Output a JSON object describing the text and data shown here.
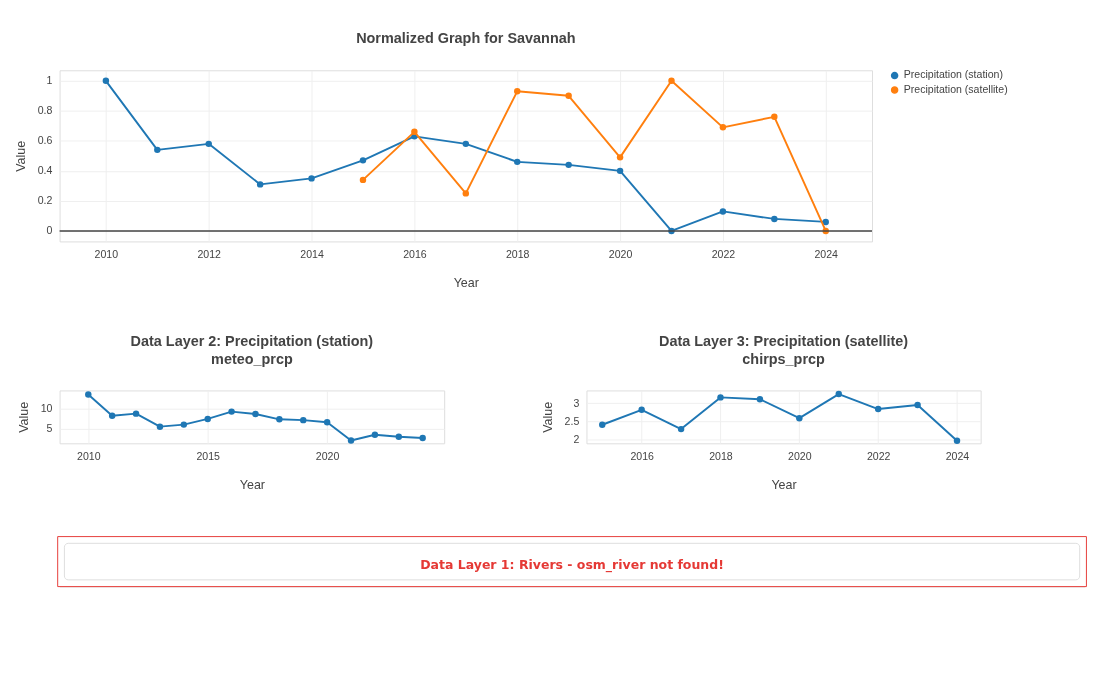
{
  "chart_data": [
    {
      "type": "line",
      "title": "Normalized Graph for Savannah",
      "xlabel": "Year",
      "ylabel": "Value",
      "x": [
        2010,
        2011,
        2012,
        2013,
        2014,
        2015,
        2016,
        2017,
        2018,
        2019,
        2020,
        2021,
        2022,
        2023,
        2024
      ],
      "series": [
        {
          "name": "Precipitation (station)",
          "color": "#1f77b4",
          "values": [
            1,
            0.54,
            0.58,
            0.31,
            0.35,
            0.47,
            0.63,
            0.58,
            0.46,
            0.44,
            0.4,
            0,
            0.13,
            0.08,
            0.06
          ]
        },
        {
          "name": "Precipitation (satellite)",
          "color": "#ff7f0e",
          "x": [
            2015,
            2016,
            2017,
            2018,
            2019,
            2020,
            2021,
            2022,
            2023,
            2024
          ],
          "values": [
            0.34,
            0.66,
            0.25,
            0.93,
            0.9,
            0.49,
            1,
            0.69,
            0.76,
            0
          ]
        }
      ],
      "xlim": [
        2009.1,
        2024.9
      ],
      "xticks": [
        2010,
        2012,
        2014,
        2016,
        2018,
        2020,
        2022,
        2024
      ],
      "ylim": [
        -0.07,
        1.07
      ],
      "yticks": [
        0,
        0.2,
        0.4,
        0.6,
        0.8,
        1
      ],
      "ref_lines": [
        {
          "axis": "y",
          "value": 0,
          "color": "#444444"
        }
      ],
      "grid": true,
      "legend": "top right",
      "marker": "circle",
      "line_style": "solid"
    },
    {
      "type": "line",
      "title": "Data Layer 2: Precipitation (station)",
      "subtitle": "meteo_prcp",
      "xlabel": "Year",
      "ylabel": "Value",
      "x": [
        2010,
        2011,
        2012,
        2013,
        2014,
        2015,
        2016,
        2017,
        2018,
        2019,
        2020,
        2021,
        2022,
        2023,
        2024
      ],
      "series": [
        {
          "color": "#1f77b4",
          "values": [
            13.5,
            8.3,
            8.8,
            5.6,
            6.1,
            7.5,
            9.3,
            8.7,
            7.4,
            7.2,
            6.7,
            2.2,
            3.6,
            3.1,
            2.8
          ]
        }
      ],
      "xlim": [
        2008.8,
        2024.9
      ],
      "xticks": [
        2010,
        2015,
        2020
      ],
      "ylim": [
        1.5,
        14.5
      ],
      "yticks": [
        5,
        10
      ],
      "grid": true,
      "marker": "circle",
      "line_style": "solid"
    },
    {
      "type": "line",
      "title": "Data Layer 3: Precipitation (satellite)",
      "subtitle": "chirps_prcp",
      "xlabel": "Year",
      "ylabel": "Value",
      "x": [
        2015,
        2016,
        2017,
        2018,
        2019,
        2020,
        2021,
        2022,
        2023,
        2024
      ],
      "series": [
        {
          "color": "#1f77b4",
          "values": [
            2.41,
            2.82,
            2.29,
            3.16,
            3.11,
            2.59,
            3.25,
            2.84,
            2.95,
            1.97
          ]
        }
      ],
      "xlim": [
        2014.6,
        2024.6
      ],
      "xticks": [
        2016,
        2018,
        2020,
        2022,
        2024
      ],
      "ylim": [
        1.9,
        3.35
      ],
      "yticks": [
        2,
        2.5,
        3
      ],
      "grid": true,
      "marker": "circle",
      "line_style": "solid"
    },
    {
      "type": "other",
      "title": "Data Layer 1: Rivers - osm_river not found!"
    }
  ]
}
